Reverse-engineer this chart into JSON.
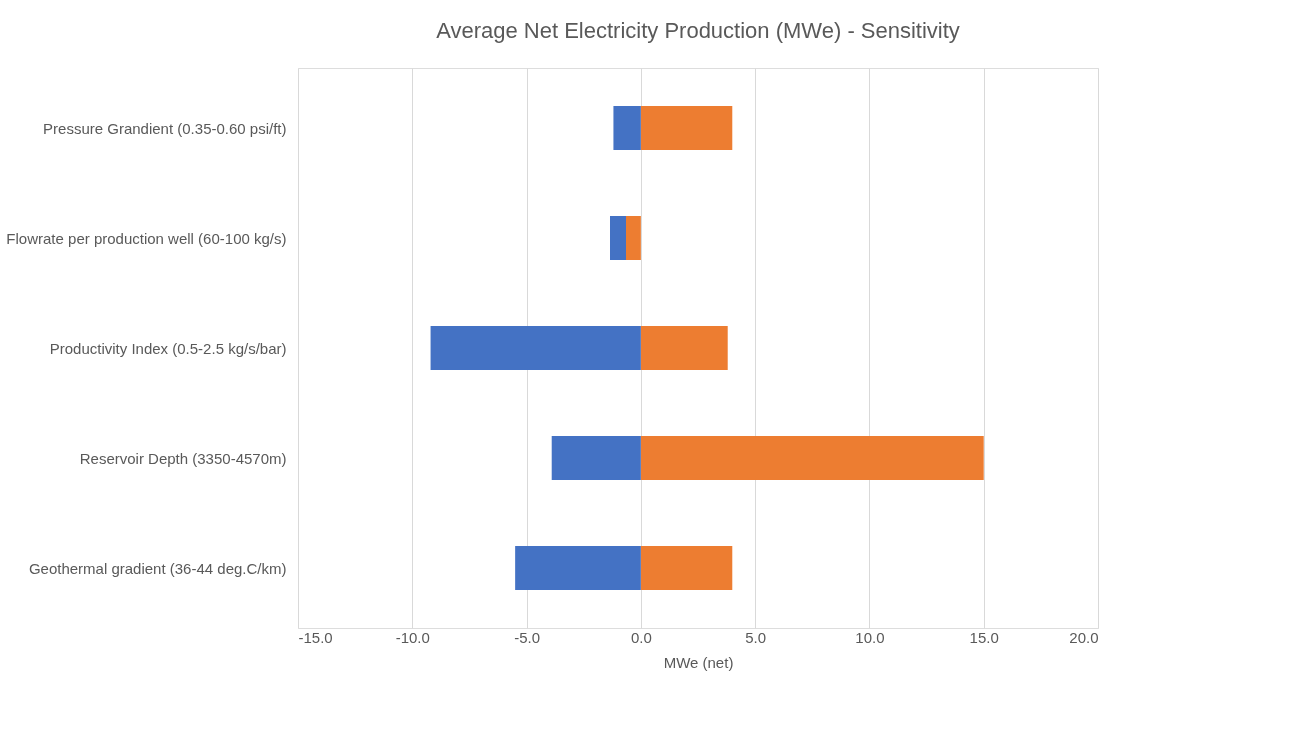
{
  "chart_data": {
    "type": "bar",
    "orientation": "horizontal",
    "title": "Average Net Electricity Production (MWe) - Sensitivity",
    "xlabel": "MWe (net)",
    "categories": [
      "Pressure Grandient (0.35-0.60 psi/ft)",
      "Flowrate per production well (60-100 kg/s)",
      "Productivity Index (0.5-2.5 kg/s/bar)",
      "Reservoir Depth (3350-4570m)",
      "Geothermal gradient (36-44 deg.C/km)"
    ],
    "series": [
      {
        "color": "#ed7d31",
        "values": [
          4.0,
          -0.65,
          3.8,
          15.0,
          4.0
        ]
      },
      {
        "color": "#4472c4",
        "values": [
          -1.2,
          -0.7,
          -9.2,
          -3.9,
          -5.5
        ]
      }
    ],
    "xlim": [
      -15,
      20
    ],
    "xticks": [
      {
        "value": -15,
        "label": "-15.0"
      },
      {
        "value": -10,
        "label": "-10.0"
      },
      {
        "value": -5,
        "label": "-5.0"
      },
      {
        "value": 0,
        "label": "0.0"
      },
      {
        "value": 5,
        "label": "5.0"
      },
      {
        "value": 10,
        "label": "10.0"
      },
      {
        "value": 15,
        "label": "15.0"
      },
      {
        "value": 20,
        "label": "20.0"
      }
    ],
    "grid": "x",
    "stacked": true
  }
}
